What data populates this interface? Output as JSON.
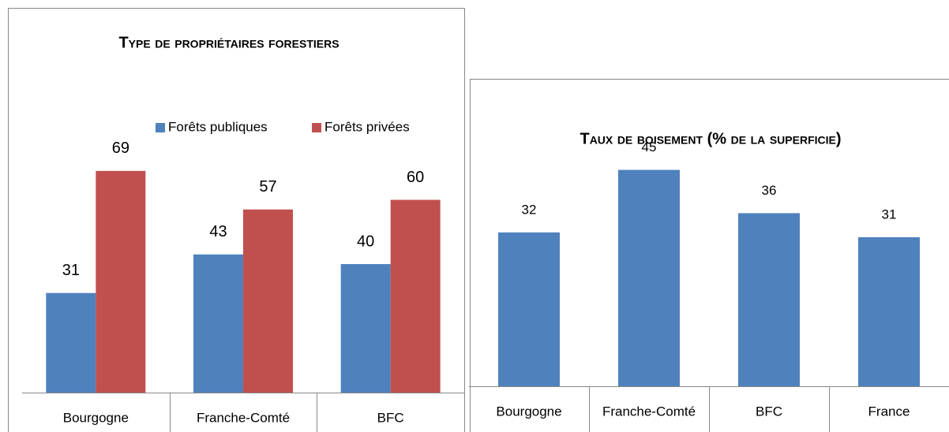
{
  "chart_data": [
    {
      "type": "bar",
      "title": "Type de propriétaires forestiers",
      "categories": [
        "Bourgogne",
        "Franche-Comté",
        "BFC"
      ],
      "series": [
        {
          "name": "Forêts publiques",
          "color": "#4f81bd",
          "values": [
            31,
            43,
            40
          ]
        },
        {
          "name": "Forêts privées",
          "color": "#c0504d",
          "values": [
            69,
            57,
            60
          ]
        }
      ],
      "ylim": [
        0,
        80
      ],
      "legend": "top"
    },
    {
      "type": "bar",
      "title": "Taux de boisement (% de la superficie)",
      "categories": [
        "Bourgogne",
        "Franche-Comté",
        "BFC",
        "France"
      ],
      "values": [
        32,
        45,
        36,
        31
      ],
      "color": "#4f81bd",
      "ylim": [
        0,
        50
      ]
    }
  ]
}
